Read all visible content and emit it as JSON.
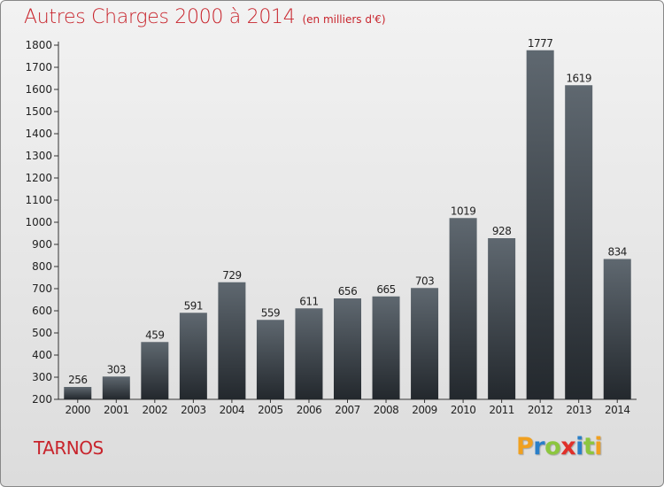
{
  "header": {
    "title": "Autres Charges 2000 à 2014",
    "unit": "(en milliers d'€)"
  },
  "place": "TARNOS",
  "logo": {
    "letters": [
      "P",
      "r",
      "o",
      "x",
      "i",
      "t",
      "i"
    ],
    "colors": [
      "#f0a020",
      "#2a7fc8",
      "#8cc63f",
      "#e0302a",
      "#2a7fc8",
      "#8cc63f",
      "#f0a020"
    ]
  },
  "colors": {
    "title": "#c8242c",
    "bar_top": "#5f6870",
    "bar_bottom": "#23282d"
  },
  "chart_data": {
    "type": "bar",
    "categories": [
      "2000",
      "2001",
      "2002",
      "2003",
      "2004",
      "2005",
      "2006",
      "2007",
      "2008",
      "2009",
      "2010",
      "2011",
      "2012",
      "2013",
      "2014"
    ],
    "values": [
      256,
      303,
      459,
      591,
      729,
      559,
      611,
      656,
      665,
      703,
      1019,
      928,
      1777,
      1619,
      834
    ],
    "ylim": [
      200,
      1800
    ],
    "yticks": [
      200,
      300,
      400,
      500,
      600,
      700,
      800,
      900,
      1000,
      1100,
      1200,
      1300,
      1400,
      1500,
      1600,
      1700,
      1800
    ],
    "grid": false,
    "data_labels": true,
    "title": "Autres Charges 2000 à 2014",
    "xlabel": "",
    "ylabel": ""
  }
}
